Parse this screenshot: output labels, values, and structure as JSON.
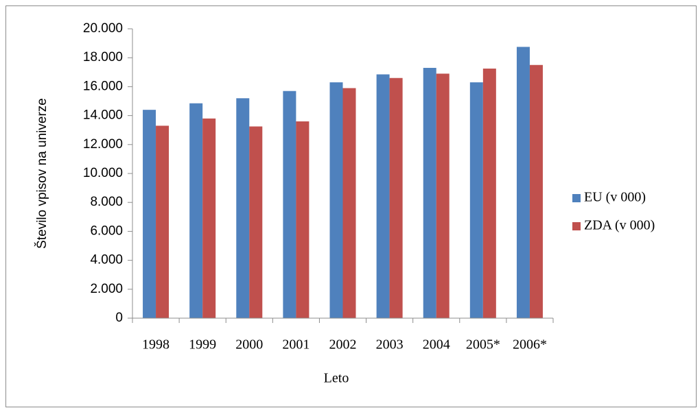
{
  "chart_data": {
    "type": "bar",
    "y_label": "Število vpisov na univerze",
    "x_label": "Leto",
    "categories": [
      "1998",
      "1999",
      "2000",
      "2001",
      "2002",
      "2003",
      "2004",
      "2005*",
      "2006*"
    ],
    "series": [
      {
        "name": "EU (v 000)",
        "color": "#4f81bd",
        "values": [
          14400,
          14850,
          15200,
          15700,
          16300,
          16850,
          17300,
          16300,
          18750
        ]
      },
      {
        "name": "ZDA (v 000)",
        "color": "#c0504d",
        "values": [
          13300,
          13800,
          13250,
          13600,
          15900,
          16600,
          16900,
          17250,
          17500
        ]
      }
    ],
    "ylim": [
      0,
      20000
    ],
    "yticks": [
      0,
      {
        "value": 2000,
        "label": "2.000"
      },
      {
        "value": 4000,
        "label": "4.000"
      },
      {
        "value": 6000,
        "label": "6.000"
      },
      {
        "value": 8000,
        "label": "8.000"
      },
      {
        "value": 10000,
        "label": "10.000"
      },
      {
        "value": 12000,
        "label": "12.000"
      },
      {
        "value": 14000,
        "label": "14.000"
      },
      {
        "value": 16000,
        "label": "16.000"
      },
      {
        "value": 18000,
        "label": "18.000"
      },
      {
        "value": 20000,
        "label": "20.000"
      }
    ],
    "grid": false,
    "legend": "right"
  }
}
